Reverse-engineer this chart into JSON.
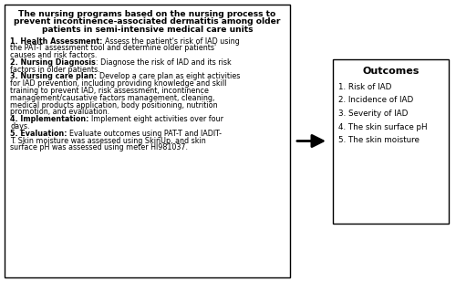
{
  "title_lines": [
    "The nursing programs based on the nursing process to",
    "prevent incontinence-associated dermatitis among older",
    "patients in semi-intensive medical care units"
  ],
  "segments": [
    {
      "bold": "1. Health Assessment: ",
      "normal_lines": [
        "Assess the patient's risk of IAD using",
        "the PAT-T assessment tool and determine older patients'",
        "causes and risk factors."
      ]
    },
    {
      "bold": "2. Nursing Diagnosis",
      "normal_lines": [
        ": Diagnose the risk of IAD and its risk",
        "factors in older patients."
      ]
    },
    {
      "bold": "3. Nursing care plan: ",
      "normal_lines": [
        "Develop a care plan as eight activities",
        "for IAD prevention, including providing knowledge and skill",
        "training to prevent IAD, risk assessment, incontinence",
        "management/causative factors management, cleaning,",
        "medical products application, body positioning, nutrition",
        "promotion, and evaluation."
      ]
    },
    {
      "bold": "4. Implementation: ",
      "normal_lines": [
        "Implement eight activities over four",
        "days."
      ]
    },
    {
      "bold": "5. Evaluation: ",
      "normal_lines": [
        "Evaluate outcomes using PAT-T and IADIT-",
        "T. Skin moisture was assessed using SkinUp, and skin",
        "surface pH was assessed using meter HI981037."
      ]
    }
  ],
  "outcomes_title": "Outcomes",
  "outcomes_items": [
    "1. Risk of IAD",
    "2. Incidence of IAD",
    "3. Severity of IAD",
    "4. The skin surface pH",
    "5. The skin moisture"
  ],
  "bg_color": "#ffffff",
  "text_color": "#000000"
}
